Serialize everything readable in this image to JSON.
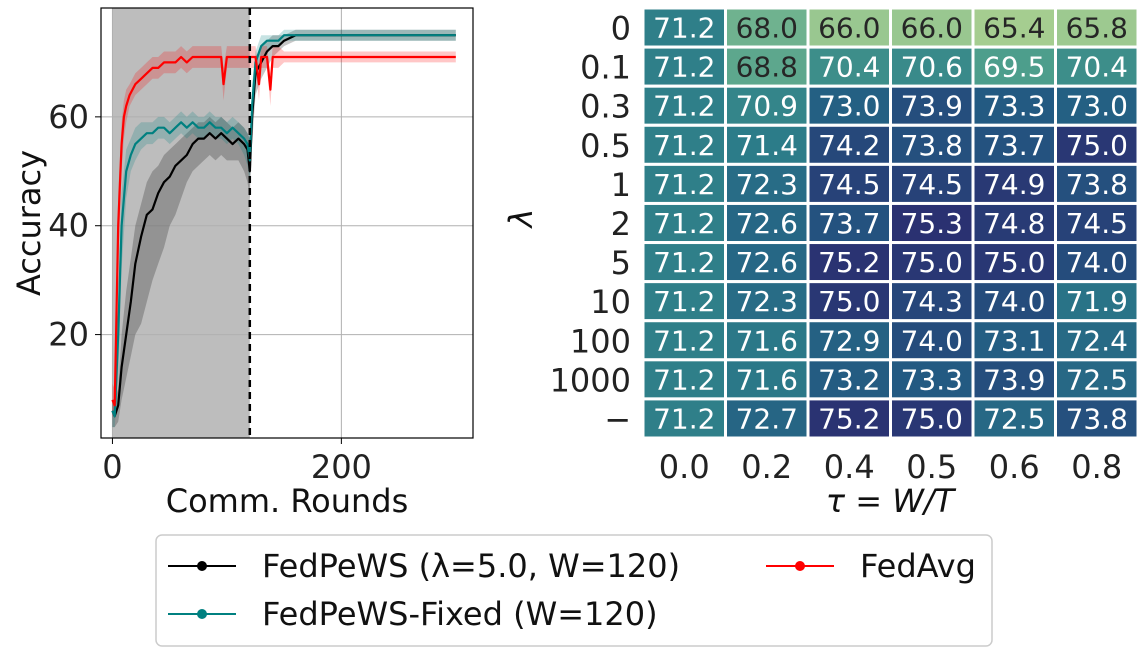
{
  "chart_data": [
    {
      "type": "line",
      "xlabel": "Comm. Rounds",
      "ylabel": "Accuracy",
      "xlim": [
        -10,
        315
      ],
      "ylim": [
        1,
        80
      ],
      "xticks": [
        0,
        200
      ],
      "yticks": [
        20,
        40,
        60
      ],
      "grid": true,
      "shaded_region": [
        0,
        120
      ],
      "vline_x": 120,
      "series": [
        {
          "name": "FedPeWS (λ=5.0, W=120)",
          "color": "#000000",
          "x": [
            0,
            2,
            5,
            8,
            12,
            16,
            20,
            25,
            30,
            35,
            40,
            45,
            50,
            55,
            60,
            65,
            70,
            75,
            80,
            85,
            90,
            95,
            100,
            105,
            110,
            115,
            118,
            120,
            122,
            125,
            130,
            135,
            140,
            145,
            150,
            160,
            170,
            180,
            200,
            220,
            250,
            280,
            300
          ],
          "y": [
            6,
            5,
            7,
            14,
            20,
            26,
            33,
            38,
            42,
            43,
            46,
            48,
            49,
            51,
            52,
            53,
            55,
            56,
            56,
            57,
            56,
            57,
            56,
            55,
            56,
            55,
            54,
            50,
            60,
            68,
            70,
            72,
            73,
            73,
            74,
            75,
            75,
            75,
            75,
            75,
            75,
            75,
            75
          ],
          "band_low": [
            3,
            3,
            4,
            8,
            12,
            16,
            20,
            22,
            26,
            30,
            33,
            36,
            40,
            42,
            45,
            48,
            50,
            51,
            52,
            53,
            52,
            53,
            52,
            52,
            52,
            50,
            48,
            45,
            55,
            64,
            67,
            69,
            71,
            72,
            73,
            74,
            74,
            74,
            74,
            74,
            74,
            74,
            74
          ],
          "band_high": [
            8,
            8,
            10,
            20,
            28,
            34,
            40,
            44,
            48,
            50,
            51,
            53,
            54,
            55,
            56,
            57,
            58,
            59,
            59,
            60,
            59,
            60,
            59,
            58,
            59,
            58,
            57,
            56,
            64,
            71,
            73,
            74,
            75,
            75,
            75,
            76,
            76,
            76,
            76,
            76,
            76,
            76,
            76
          ]
        },
        {
          "name": "FedPeWS-Fixed (W=120)",
          "color": "#008080",
          "x": [
            0,
            2,
            5,
            8,
            12,
            16,
            20,
            25,
            30,
            35,
            40,
            45,
            50,
            55,
            60,
            65,
            70,
            75,
            80,
            85,
            90,
            95,
            100,
            105,
            110,
            115,
            118,
            120,
            122,
            125,
            130,
            135,
            140,
            145,
            150,
            160,
            170,
            180,
            200,
            220,
            250,
            280,
            300
          ],
          "y": [
            6,
            5,
            20,
            40,
            50,
            53,
            55,
            56,
            57,
            57,
            58,
            58,
            57,
            58,
            59,
            58,
            59,
            58,
            58,
            59,
            58,
            58,
            57,
            58,
            57,
            56,
            55,
            52,
            62,
            70,
            73,
            74,
            74,
            74,
            75,
            75,
            75,
            75,
            75,
            75,
            75,
            75,
            75
          ],
          "band_low": [
            3,
            3,
            12,
            32,
            45,
            50,
            52,
            54,
            55,
            55,
            56,
            56,
            55,
            56,
            57,
            56,
            57,
            56,
            56,
            57,
            56,
            56,
            55,
            56,
            55,
            53,
            51,
            48,
            58,
            67,
            71,
            72,
            73,
            73,
            74,
            74,
            74,
            74,
            74,
            74,
            74,
            74,
            74
          ],
          "band_high": [
            8,
            8,
            26,
            46,
            54,
            56,
            58,
            59,
            59,
            59,
            60,
            60,
            59,
            60,
            61,
            60,
            61,
            60,
            60,
            61,
            60,
            60,
            59,
            60,
            59,
            58,
            57,
            56,
            66,
            72,
            75,
            75,
            75,
            75,
            76,
            76,
            76,
            76,
            76,
            76,
            76,
            76,
            76
          ]
        },
        {
          "name": "FedAvg",
          "color": "#ff0000",
          "x": [
            0,
            2,
            5,
            8,
            10,
            12,
            15,
            20,
            25,
            30,
            35,
            40,
            45,
            50,
            55,
            60,
            65,
            70,
            75,
            80,
            85,
            90,
            95,
            97,
            100,
            105,
            110,
            115,
            118,
            120,
            125,
            128,
            130,
            135,
            138,
            140,
            145,
            150,
            160,
            170,
            180,
            200,
            220,
            250,
            280,
            300
          ],
          "y": [
            8,
            7,
            40,
            55,
            60,
            62,
            64,
            66,
            67,
            68,
            69,
            69,
            70,
            70,
            70,
            71,
            70,
            71,
            71,
            71,
            71,
            71,
            71,
            66,
            71,
            71,
            71,
            71,
            71,
            71,
            71,
            66,
            71,
            71,
            65,
            71,
            71,
            71,
            71,
            71,
            71,
            71,
            71,
            71,
            71,
            71
          ],
          "band_low": [
            5,
            5,
            33,
            50,
            56,
            59,
            62,
            64,
            65,
            66,
            67,
            67,
            68,
            68,
            68,
            69,
            68,
            69,
            69,
            69,
            69,
            69,
            69,
            63,
            69,
            69,
            69,
            69,
            69,
            69,
            69,
            63,
            69,
            69,
            62,
            69,
            69,
            70,
            70,
            70,
            70,
            70,
            70,
            70,
            70,
            70
          ],
          "band_high": [
            11,
            10,
            46,
            59,
            63,
            65,
            66,
            68,
            69,
            70,
            71,
            71,
            72,
            72,
            72,
            73,
            72,
            73,
            73,
            73,
            73,
            73,
            73,
            69,
            73,
            73,
            73,
            73,
            73,
            73,
            73,
            69,
            73,
            73,
            68,
            73,
            73,
            72,
            72,
            72,
            72,
            72,
            72,
            72,
            72,
            72
          ]
        }
      ]
    },
    {
      "type": "heatmap",
      "xlabel": "τ = W/T",
      "ylabel": "λ",
      "x_labels": [
        "0.0",
        "0.2",
        "0.4",
        "0.5",
        "0.6",
        "0.8"
      ],
      "y_labels": [
        "0",
        "0.1",
        "0.3",
        "0.5",
        "1",
        "2",
        "5",
        "10",
        "100",
        "1000",
        "−"
      ],
      "values": [
        [
          "71.2",
          "68.0",
          "66.0",
          "66.0",
          "65.4",
          "65.8"
        ],
        [
          "71.2",
          "68.8",
          "70.4",
          "70.6",
          "69.5",
          "70.4"
        ],
        [
          "71.2",
          "70.9",
          "73.0",
          "73.9",
          "73.3",
          "73.0"
        ],
        [
          "71.2",
          "71.4",
          "74.2",
          "73.8",
          "73.7",
          "75.0"
        ],
        [
          "71.2",
          "72.3",
          "74.5",
          "74.5",
          "74.9",
          "73.8"
        ],
        [
          "71.2",
          "72.6",
          "73.7",
          "75.3",
          "74.8",
          "74.5"
        ],
        [
          "71.2",
          "72.6",
          "75.2",
          "75.0",
          "75.0",
          "74.0"
        ],
        [
          "71.2",
          "72.3",
          "75.0",
          "74.3",
          "74.0",
          "71.9"
        ],
        [
          "71.2",
          "71.6",
          "72.9",
          "74.0",
          "73.1",
          "72.4"
        ],
        [
          "71.2",
          "71.6",
          "73.2",
          "73.3",
          "73.9",
          "72.5"
        ],
        [
          "71.2",
          "72.7",
          "75.2",
          "75.0",
          "72.5",
          "73.8"
        ]
      ],
      "colormap": "crest",
      "vmin": 65.4,
      "vmax": 75.3
    }
  ],
  "legend": {
    "placement": "bottom-center",
    "items": [
      {
        "label": "FedPeWS (λ=5.0, W=120)",
        "color": "#000000"
      },
      {
        "label": "FedAvg",
        "color": "#ff0000"
      },
      {
        "label": "FedPeWS-Fixed (W=120)",
        "color": "#008080"
      }
    ]
  }
}
